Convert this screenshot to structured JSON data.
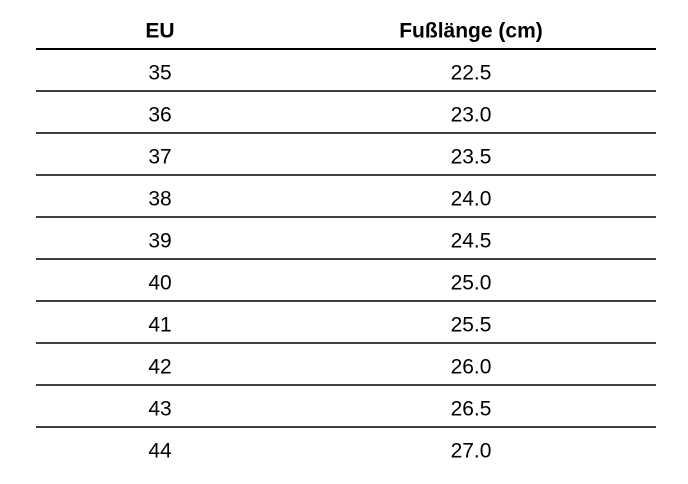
{
  "table": {
    "header": [
      "EU",
      "Fußlänge (cm)"
    ],
    "rows": [
      [
        "35",
        "22.5"
      ],
      [
        "36",
        "23.0"
      ],
      [
        "37",
        "23.5"
      ],
      [
        "38",
        "24.0"
      ],
      [
        "39",
        "24.5"
      ],
      [
        "40",
        "25.0"
      ],
      [
        "41",
        "25.5"
      ],
      [
        "42",
        "26.0"
      ],
      [
        "43",
        "26.5"
      ],
      [
        "44",
        "27.0"
      ]
    ]
  }
}
